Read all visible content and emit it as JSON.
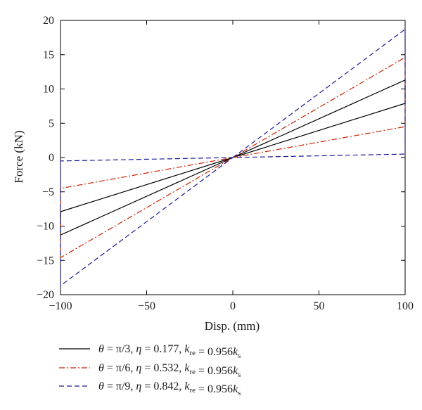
{
  "chart_data": {
    "type": "line",
    "title": "",
    "xlabel": "Disp. (mm)",
    "ylabel": "Force (kN)",
    "xlim": [
      -100,
      100
    ],
    "ylim": [
      -20,
      20
    ],
    "xticks": [
      -100,
      -50,
      0,
      50,
      100
    ],
    "yticks": [
      -20,
      -15,
      -10,
      -5,
      0,
      5,
      10,
      15,
      20
    ],
    "xtick_labels": [
      "−100",
      "−50",
      "0",
      "50",
      "100"
    ],
    "ytick_labels": [
      "−20",
      "−15",
      "−10",
      "−5",
      "0",
      "5",
      "10",
      "15",
      "20"
    ],
    "grid": false,
    "legend_position": "bottom",
    "series": [
      {
        "name": "θ = π/3, η = 0.177, k_re = 0.956k_s",
        "legend": {
          "theta": "π/3",
          "eta": "0.177",
          "k_coef": "0.956"
        },
        "color": "#000000",
        "style": "solid",
        "loop": [
          [
            0,
            0
          ],
          [
            100,
            11.3
          ],
          [
            100,
            7.9
          ],
          [
            0,
            0
          ],
          [
            -100,
            -7.9
          ],
          [
            -100,
            -11.3
          ],
          [
            0,
            0
          ]
        ]
      },
      {
        "name": "θ = π/6, η = 0.532, k_re = 0.956k_s",
        "legend": {
          "theta": "π/6",
          "eta": "0.532",
          "k_coef": "0.956"
        },
        "color": "#cc2200",
        "style": "dashdot",
        "loop": [
          [
            0,
            0
          ],
          [
            100,
            14.6
          ],
          [
            100,
            4.5
          ],
          [
            0,
            0
          ],
          [
            -100,
            -4.5
          ],
          [
            -100,
            -14.6
          ],
          [
            0,
            0
          ]
        ]
      },
      {
        "name": "θ = π/9, η = 0.842, k_re = 0.956k_s",
        "legend": {
          "theta": "π/9",
          "eta": "0.842",
          "k_coef": "0.956"
        },
        "color": "#1a1a99",
        "style": "dashed",
        "loop": [
          [
            0,
            0
          ],
          [
            100,
            18.7
          ],
          [
            100,
            0.5
          ],
          [
            0,
            0
          ],
          [
            -100,
            -0.5
          ],
          [
            -100,
            -18.7
          ],
          [
            0,
            0
          ]
        ]
      }
    ]
  }
}
